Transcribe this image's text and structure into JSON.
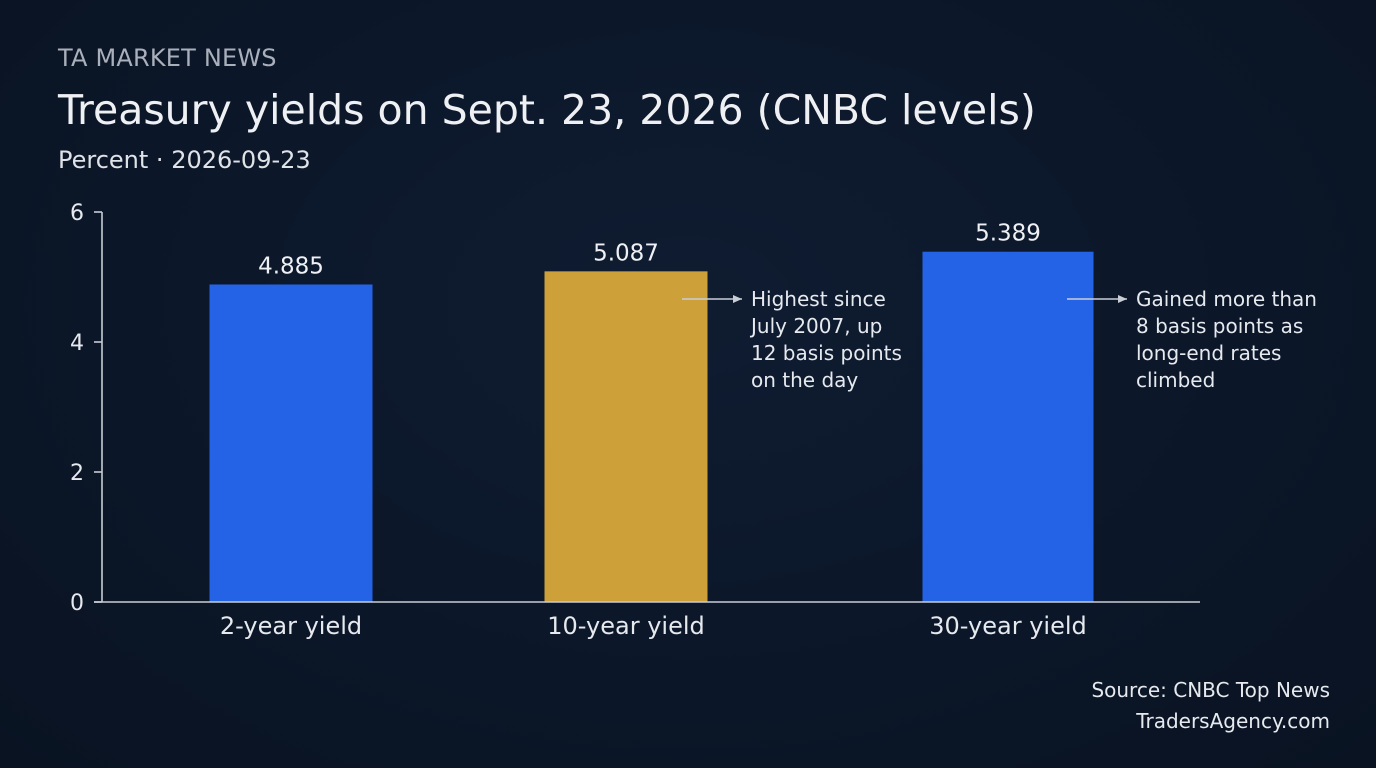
{
  "header": {
    "kicker": "TA MARKET NEWS",
    "title": "Treasury yields on Sept. 23, 2026 (CNBC levels)",
    "subtitle": "Percent · 2026-09-23"
  },
  "footer": {
    "source": "Source: CNBC Top News",
    "site": "TradersAgency.com"
  },
  "chart_data": {
    "type": "bar",
    "title": "Treasury yields on Sept. 23, 2026 (CNBC levels)",
    "ylabel": "",
    "xlabel": "",
    "ylim": [
      0,
      6
    ],
    "yticks": [
      0,
      2,
      4,
      6
    ],
    "grid": false,
    "categories": [
      "2-year yield",
      "10-year yield",
      "30-year yield"
    ],
    "values": [
      4.885,
      5.087,
      5.389
    ],
    "value_labels": [
      "4.885",
      "5.087",
      "5.389"
    ],
    "colors": [
      "#2463e6",
      "#cda03a",
      "#2463e6"
    ],
    "annotations": [
      {
        "category": "10-year yield",
        "lines": [
          "Highest since",
          "July 2007, up",
          "12 basis points",
          "on the day"
        ]
      },
      {
        "category": "30-year yield",
        "lines": [
          "Gained more than",
          "8 basis points as",
          "long-end rates",
          "climbed"
        ]
      }
    ]
  }
}
